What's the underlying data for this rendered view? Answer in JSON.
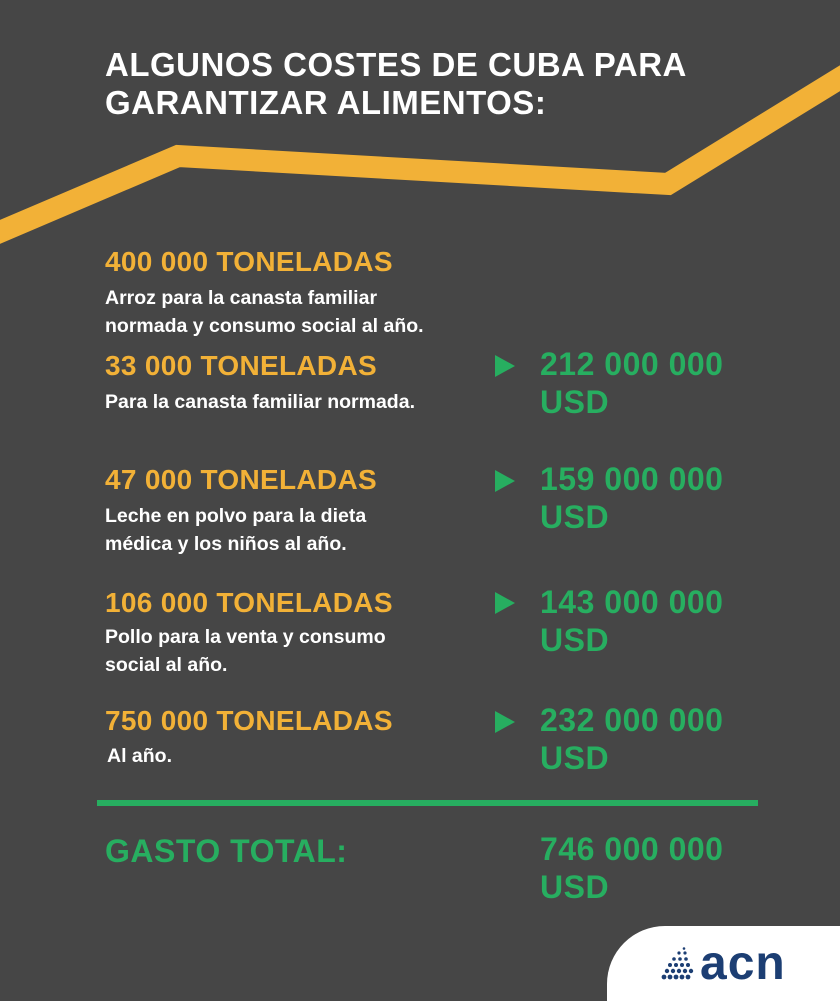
{
  "title": {
    "line1": "ALGUNOS COSTES DE CUBA PARA",
    "line2": "GARANTIZAR ALIMENTOS:"
  },
  "colors": {
    "background": "#464646",
    "accent_yellow": "#f2b137",
    "accent_green": "#27ae60",
    "text_white": "#ffffff",
    "logo_blue": "#1c3e73"
  },
  "items": [
    {
      "amount": "400 000 TONELADAS",
      "desc_line1": "Arroz para la canasta familiar",
      "desc_line2": "normada y consumo social al año."
    },
    {
      "amount": "33 000 TONELADAS",
      "desc_line1": "Para la canasta familiar normada.",
      "cost_line1": "212 000 000",
      "cost_line2": "USD",
      "arrow_icon": "triangle-right-icon"
    },
    {
      "amount": "47 000 TONELADAS",
      "desc_line1": "Leche en polvo para la dieta",
      "desc_line2": "médica y los niños al año.",
      "cost_line1": "159 000 000",
      "cost_line2": "USD",
      "arrow_icon": "triangle-right-icon"
    },
    {
      "amount": "106 000 TONELADAS",
      "desc_line1": "Pollo para la venta y consumo",
      "desc_line2": "social al año.",
      "cost_line1": "143 000 000",
      "cost_line2": "USD",
      "arrow_icon": "triangle-right-icon"
    },
    {
      "amount": "750 000 TONELADAS",
      "desc_line1": "Al año.",
      "cost_line1": "232 000 000",
      "cost_line2": "USD",
      "arrow_icon": "triangle-right-icon"
    }
  ],
  "total": {
    "label": "GASTO TOTAL:",
    "value_line1": "746 000 000",
    "value_line2": "USD"
  },
  "logo": {
    "text": "acn",
    "icon": "dotted-globe-icon"
  }
}
